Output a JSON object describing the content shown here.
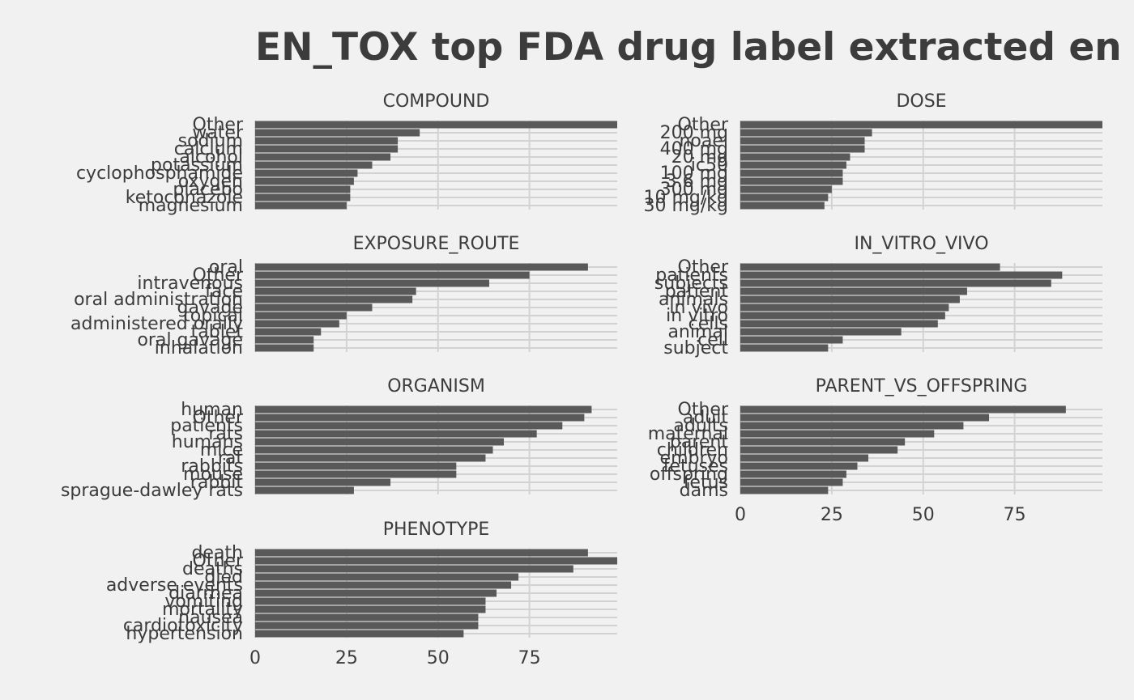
{
  "chart_data": {
    "type": "bar",
    "orientation": "horizontal",
    "title": "EN_TOX top FDA drug label extracted en",
    "xlabel": "",
    "ylabel": "",
    "xlim": [
      0,
      99
    ],
    "x_ticks": [
      0,
      25,
      50,
      75
    ],
    "grid": true,
    "legend": "none",
    "colors": {
      "background": "#f1f1f1",
      "bar": "#595959",
      "grid": "#d2d2d2",
      "text": "#3c3c3c"
    },
    "facets": [
      {
        "name": "COMPOUND",
        "categories": [
          "Other",
          "water",
          "sodium",
          "calcium",
          "alcohol",
          "potassium",
          "cyclophosphamide",
          "oxygen",
          "placebo",
          "ketoconazole",
          "magnesium"
        ],
        "values": [
          99,
          45,
          39,
          39,
          37,
          32,
          28,
          27,
          26,
          26,
          25
        ]
      },
      {
        "name": "DOSE",
        "categories": [
          "Other",
          "200 mg",
          "noael",
          "400 mg",
          "20 mg",
          "ic50",
          "100 mg",
          "3.6 mg",
          "300 mg",
          "10 mg/kg",
          "30 mg/kg"
        ],
        "values": [
          99,
          36,
          34,
          34,
          30,
          29,
          28,
          28,
          25,
          24,
          23
        ]
      },
      {
        "name": "EXPOSURE_ROUTE",
        "categories": [
          "oral",
          "Other",
          "intravenous",
          "face",
          "oral administration",
          "gavage",
          "topical",
          "administered orally",
          "tablet",
          "oral gavage",
          "inhalation"
        ],
        "values": [
          91,
          75,
          64,
          44,
          43,
          32,
          25,
          23,
          18,
          16,
          16
        ]
      },
      {
        "name": "IN_VITRO_VIVO",
        "categories": [
          "Other",
          "patients",
          "subjects",
          "patient",
          "animals",
          "in vivo",
          "in vitro",
          "cells",
          "animal",
          "cell",
          "subject"
        ],
        "values": [
          71,
          88,
          85,
          62,
          60,
          57,
          56,
          54,
          44,
          28,
          24
        ]
      },
      {
        "name": "ORGANISM",
        "categories": [
          "human",
          "Other",
          "patients",
          "rats",
          "humans",
          "mice",
          "rat",
          "rabbits",
          "mouse",
          "rabbit",
          "sprague-dawley rats"
        ],
        "values": [
          92,
          90,
          84,
          77,
          68,
          65,
          63,
          55,
          55,
          37,
          27
        ]
      },
      {
        "name": "PARENT_VS_OFFSPRING",
        "categories": [
          "Other",
          "adult",
          "adults",
          "maternal",
          "parent",
          "children",
          "embryo",
          "fetuses",
          "offspring",
          "fetus",
          "dams"
        ],
        "values": [
          89,
          68,
          61,
          53,
          45,
          43,
          35,
          32,
          29,
          28,
          24
        ]
      },
      {
        "name": "PHENOTYPE",
        "categories": [
          "death",
          "Other",
          "deaths",
          "died",
          "adverse events",
          "diarrhea",
          "vomiting",
          "mortality",
          "nausea",
          "cardiotoxicity",
          "hypertension"
        ],
        "values": [
          91,
          99,
          87,
          72,
          70,
          66,
          63,
          63,
          61,
          61,
          57
        ]
      }
    ]
  }
}
